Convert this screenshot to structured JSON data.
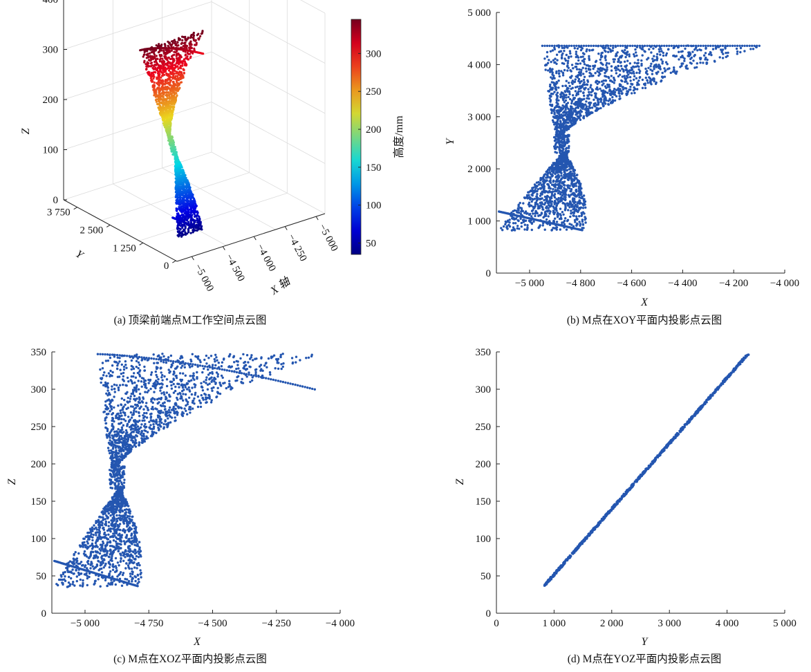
{
  "colors": {
    "point": "#2456b0",
    "axis": "#222222",
    "grid": "#dcdcdc"
  },
  "chart_data": [
    {
      "id": "a",
      "type": "scatter",
      "caption": "(a) 顶梁前端点M工作空间点云图",
      "title": "",
      "xlabel": "X 轴",
      "ylabel": "Y",
      "zlabel": "Z",
      "x_ticks": [
        "−5 000",
        "−4 500",
        "−4 000",
        "−4 250",
        "−5 000"
      ],
      "y_ticks": [
        "3 750",
        "2 500",
        "1 250",
        "0"
      ],
      "z_ticks": [
        "400",
        "300",
        "200",
        "100",
        "0"
      ],
      "colorbar": {
        "label": "高度/mm",
        "ticks": [
          "300",
          "250",
          "200",
          "150",
          "100",
          "50"
        ],
        "range": [
          35,
          345
        ],
        "colormap": "jet"
      },
      "point_count": 2400,
      "grid": true
    },
    {
      "id": "b",
      "type": "scatter",
      "caption": "(b) M点在XOY平面内投影点云图",
      "title": "",
      "xlabel": "X",
      "ylabel": "Y",
      "xlim": [
        -5130,
        -4000
      ],
      "ylim": [
        0,
        5000
      ],
      "x_ticks": [
        -5000,
        -4800,
        -4600,
        -4400,
        -4200,
        -4000
      ],
      "x_tick_labels": [
        "−5 000",
        "−4 800",
        "−4 600",
        "−4 400",
        "−4 200",
        "−4 000"
      ],
      "y_ticks": [
        0,
        1000,
        2000,
        3000,
        4000,
        5000
      ],
      "y_tick_labels": [
        "0",
        "1 000",
        "2 000",
        "3 000",
        "4 000",
        "5 000"
      ],
      "point_count": 2400,
      "grid": false
    },
    {
      "id": "c",
      "type": "scatter",
      "caption": "(c) M点在XOZ平面内投影点云图",
      "title": "",
      "xlabel": "X",
      "ylabel": "Z",
      "xlim": [
        -5130,
        -4000
      ],
      "ylim": [
        0,
        350
      ],
      "x_ticks": [
        -5000,
        -4750,
        -4500,
        -4250,
        -4000
      ],
      "x_tick_labels": [
        "−5 000",
        "−4 750",
        "−4 500",
        "−4 250",
        "−4 000"
      ],
      "y_ticks": [
        0,
        50,
        100,
        150,
        200,
        250,
        300,
        350
      ],
      "y_tick_labels": [
        "0",
        "50",
        "100",
        "150",
        "200",
        "250",
        "300",
        "350"
      ],
      "point_count": 2400,
      "grid": false
    },
    {
      "id": "d",
      "type": "scatter",
      "caption": "(d) M点在YOZ平面内投影点云图",
      "title": "",
      "xlabel": "Y",
      "ylabel": "Z",
      "xlim": [
        0,
        5000
      ],
      "ylim": [
        0,
        350
      ],
      "x_ticks": [
        0,
        1000,
        2000,
        3000,
        4000,
        5000
      ],
      "x_tick_labels": [
        "0",
        "1 000",
        "2 000",
        "3 000",
        "4 000",
        "5 000"
      ],
      "y_ticks": [
        0,
        50,
        100,
        150,
        200,
        250,
        300,
        350
      ],
      "y_tick_labels": [
        "0",
        "50",
        "100",
        "150",
        "200",
        "250",
        "300",
        "350"
      ],
      "line_start": [
        820,
        36
      ],
      "line_end": [
        4360,
        347
      ],
      "point_count": 900,
      "grid": false
    }
  ]
}
